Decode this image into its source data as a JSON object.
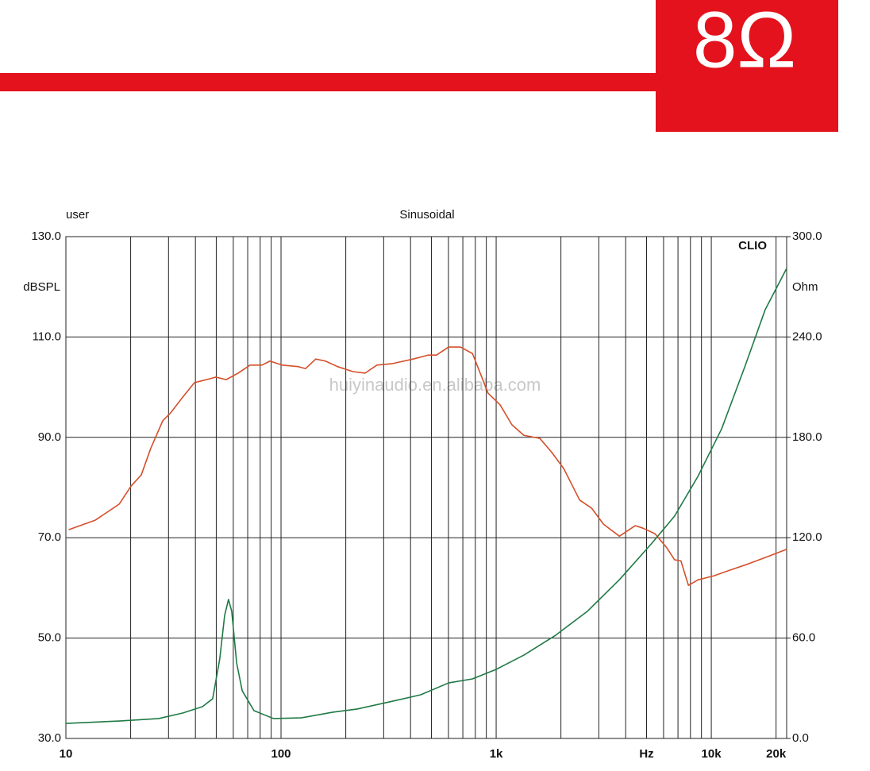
{
  "header": {
    "badge": "8Ω"
  },
  "chart_data": {
    "type": "line",
    "title": "Sinusoidal",
    "corner_label": "user",
    "brand": "CLIO",
    "watermark": "huiyinaudio.en.alibaba.com",
    "y_label": "dBSPL",
    "y2_label": "Ohm",
    "x_scale": "log",
    "xlim": [
      10,
      22400
    ],
    "xticks": [
      10,
      100,
      {
        "value": 1000,
        "label": "1k"
      },
      {
        "value": 5000,
        "label": "Hz"
      },
      {
        "value": 10000,
        "label": "10k"
      },
      {
        "value": 20000,
        "label": "20k"
      }
    ],
    "xgrid": [
      20,
      30,
      40,
      50,
      60,
      70,
      80,
      90,
      200,
      300,
      400,
      500,
      600,
      700,
      800,
      900,
      2000,
      3000,
      4000,
      6000,
      7000,
      8000,
      9000
    ],
    "ylim": [
      30,
      130
    ],
    "yticks": [
      {
        "value": 30,
        "label": "30.0"
      },
      {
        "value": 50,
        "label": "50.0"
      },
      {
        "value": 70,
        "label": "70.0"
      },
      {
        "value": 90,
        "label": "90.0"
      },
      {
        "value": 110,
        "label": "110.0"
      },
      {
        "value": 130,
        "label": "130.0"
      }
    ],
    "y2lim": [
      0,
      300
    ],
    "y2ticks": [
      {
        "value": 0,
        "label": "0.0"
      },
      {
        "value": 60,
        "label": "60.0"
      },
      {
        "value": 120,
        "label": "120.0"
      },
      {
        "value": 180,
        "label": "180.0"
      },
      {
        "value": 240,
        "label": "240.0"
      },
      {
        "value": 300,
        "label": "300.0"
      }
    ],
    "grid": true,
    "series": [
      {
        "color": "#d4502a",
        "x": [
          10.3,
          13.7,
          17.7,
          20.1,
          22.4,
          24.8,
          28.2,
          30.7,
          34.9,
          39.6,
          46.9,
          49.8,
          55.6,
          63.2,
          71.8,
          81.5,
          88.8,
          101,
          120,
          130,
          145,
          161,
          183,
          216,
          246,
          279,
          330,
          411,
          485,
          528,
          601,
          683,
          776,
          843,
          917,
          1042,
          1184,
          1345,
          1596,
          1813,
          2060,
          2444,
          2776,
          3154,
          3741,
          4427,
          4810,
          5470,
          6210,
          6750,
          7220,
          7830,
          8670,
          10260,
          12150,
          14900,
          18700,
          22400
        ],
        "values": [
          71.6,
          73.5,
          76.7,
          80.3,
          82.5,
          87.8,
          93.3,
          94.9,
          98.0,
          100.9,
          101.7,
          102.0,
          101.5,
          102.8,
          104.4,
          104.4,
          105.2,
          104.4,
          104.1,
          103.7,
          105.6,
          105.2,
          104.1,
          103.1,
          102.8,
          104.4,
          104.7,
          105.6,
          106.4,
          106.4,
          108.0,
          108.0,
          106.7,
          102.8,
          98.8,
          96.5,
          92.5,
          90.4,
          89.8,
          87.0,
          83.8,
          77.5,
          75.9,
          72.7,
          70.3,
          72.4,
          71.9,
          70.8,
          68.0,
          65.6,
          65.4,
          60.5,
          61.6,
          62.4,
          63.5,
          64.8,
          66.4,
          67.7
        ]
      },
      {
        "color": "#1f7a45",
        "axis": "y2",
        "x": [
          10,
          17.7,
          27.0,
          34.9,
          43.1,
          48.1,
          51.9,
          54.7,
          57.0,
          59.0,
          62.2,
          66.0,
          74.9,
          92.3,
          124,
          174,
          226,
          318,
          446,
          601,
          776,
          1000,
          1345,
          1890,
          2654,
          3741,
          5260,
          6750,
          8670,
          11170,
          14400,
          17800,
          22400
        ],
        "values": [
          9.0,
          10.4,
          11.9,
          15.2,
          19.0,
          23.7,
          47.5,
          73.6,
          83.1,
          76.0,
          45.1,
          28.5,
          16.6,
          11.9,
          12.3,
          15.7,
          17.6,
          21.8,
          26.1,
          33.2,
          35.6,
          41.3,
          49.8,
          61.7,
          76.0,
          94.9,
          116.3,
          132.9,
          156.7,
          185.1,
          223.1,
          256.3,
          281.0
        ]
      }
    ]
  }
}
